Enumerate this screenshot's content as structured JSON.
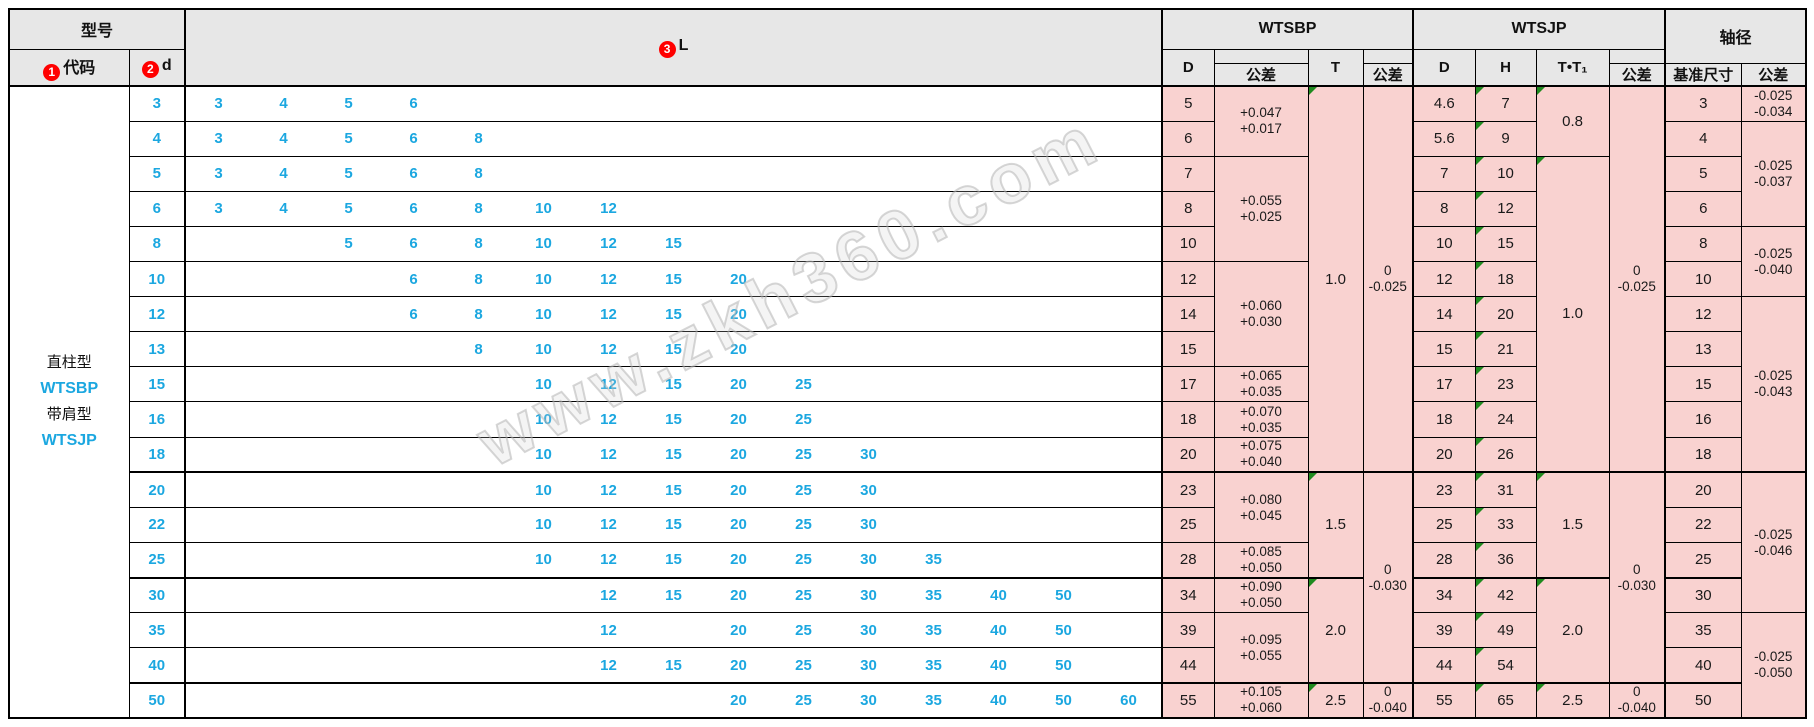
{
  "watermark": "www.zkh360.com",
  "colors": {
    "accent_blue": "#1BA7E0",
    "pink_bg": "#F9D2D0",
    "header_gray": "#E7E7E7",
    "badge_red": "#FF0000",
    "marker_green": "#1F8A1F"
  },
  "header": {
    "model": "型号",
    "code": {
      "badge": "1",
      "label": "代码"
    },
    "d": {
      "badge": "2",
      "label": "d"
    },
    "l": {
      "badge": "3",
      "label": "L"
    },
    "wtsbp": "WTSBP",
    "wtsjp": "WTSJP",
    "shaft": "轴径",
    "sub_d": "D",
    "sub_tol": "公差",
    "sub_t": "T",
    "sub_h": "H",
    "sub_tt1": "T•T₁",
    "sub_datum": "基准尺寸"
  },
  "model_cell": {
    "type1": "直柱型",
    "code1": "WTSBP",
    "type2": "带肩型",
    "code2": "WTSJP"
  },
  "l_slots": [
    "3",
    "4",
    "5",
    "6",
    "8",
    "10",
    "12",
    "15",
    "20",
    "25",
    "30",
    "35",
    "40",
    "50",
    "60"
  ],
  "rows": [
    {
      "d": "3",
      "l": [
        "3",
        "4",
        "5",
        "6"
      ],
      "bp_d": "5",
      "jp_d": "4.6",
      "jp_h": "7",
      "shaft": "3"
    },
    {
      "d": "4",
      "l": [
        "3",
        "4",
        "5",
        "6",
        "8"
      ],
      "bp_d": "6",
      "jp_d": "5.6",
      "jp_h": "9",
      "shaft": "4"
    },
    {
      "d": "5",
      "l": [
        "3",
        "4",
        "5",
        "6",
        "8"
      ],
      "bp_d": "7",
      "jp_d": "7",
      "jp_h": "10",
      "shaft": "5"
    },
    {
      "d": "6",
      "l": [
        "3",
        "4",
        "5",
        "6",
        "8",
        "10",
        "12"
      ],
      "bp_d": "8",
      "jp_d": "8",
      "jp_h": "12",
      "shaft": "6"
    },
    {
      "d": "8",
      "l": [
        "5",
        "6",
        "8",
        "10",
        "12",
        "15"
      ],
      "bp_d": "10",
      "jp_d": "10",
      "jp_h": "15",
      "shaft": "8"
    },
    {
      "d": "10",
      "l": [
        "6",
        "8",
        "10",
        "12",
        "15",
        "20"
      ],
      "bp_d": "12",
      "jp_d": "12",
      "jp_h": "18",
      "shaft": "10"
    },
    {
      "d": "12",
      "l": [
        "6",
        "8",
        "10",
        "12",
        "15",
        "20"
      ],
      "bp_d": "14",
      "jp_d": "14",
      "jp_h": "20",
      "shaft": "12"
    },
    {
      "d": "13",
      "l": [
        "8",
        "10",
        "12",
        "15",
        "20"
      ],
      "bp_d": "15",
      "jp_d": "15",
      "jp_h": "21",
      "shaft": "13"
    },
    {
      "d": "15",
      "l": [
        "10",
        "12",
        "15",
        "20",
        "25"
      ],
      "bp_d": "17",
      "jp_d": "17",
      "jp_h": "23",
      "shaft": "15"
    },
    {
      "d": "16",
      "l": [
        "10",
        "12",
        "15",
        "20",
        "25"
      ],
      "bp_d": "18",
      "jp_d": "18",
      "jp_h": "24",
      "shaft": "16"
    },
    {
      "d": "18",
      "l": [
        "10",
        "12",
        "15",
        "20",
        "25",
        "30"
      ],
      "bp_d": "20",
      "jp_d": "20",
      "jp_h": "26",
      "shaft": "18"
    },
    {
      "d": "20",
      "l": [
        "10",
        "12",
        "15",
        "20",
        "25",
        "30"
      ],
      "bp_d": "23",
      "jp_d": "23",
      "jp_h": "31",
      "shaft": "20"
    },
    {
      "d": "22",
      "l": [
        "10",
        "12",
        "15",
        "20",
        "25",
        "30"
      ],
      "bp_d": "25",
      "jp_d": "25",
      "jp_h": "33",
      "shaft": "22"
    },
    {
      "d": "25",
      "l": [
        "10",
        "12",
        "15",
        "20",
        "25",
        "30",
        "35"
      ],
      "bp_d": "28",
      "jp_d": "28",
      "jp_h": "36",
      "shaft": "25"
    },
    {
      "d": "30",
      "l": [
        "12",
        "15",
        "20",
        "25",
        "30",
        "35",
        "40",
        "50"
      ],
      "bp_d": "34",
      "jp_d": "34",
      "jp_h": "42",
      "shaft": "30"
    },
    {
      "d": "35",
      "l": [
        "12",
        "20",
        "25",
        "30",
        "35",
        "40",
        "50"
      ],
      "bp_d": "39",
      "jp_d": "39",
      "jp_h": "49",
      "shaft": "35"
    },
    {
      "d": "40",
      "l": [
        "12",
        "15",
        "20",
        "25",
        "30",
        "35",
        "40",
        "50"
      ],
      "bp_d": "44",
      "jp_d": "44",
      "jp_h": "54",
      "shaft": "40"
    },
    {
      "d": "50",
      "l": [
        "20",
        "25",
        "30",
        "35",
        "40",
        "50",
        "60"
      ],
      "bp_d": "55",
      "jp_d": "55",
      "jp_h": "65",
      "shaft": "50"
    }
  ],
  "bp_tol_groups": [
    {
      "start": 0,
      "span": 2,
      "lines": [
        "+0.047",
        "+0.017"
      ]
    },
    {
      "start": 2,
      "span": 3,
      "lines": [
        "+0.055",
        "+0.025"
      ]
    },
    {
      "start": 5,
      "span": 3,
      "lines": [
        "+0.060",
        "+0.030"
      ]
    },
    {
      "start": 8,
      "span": 1,
      "lines": [
        "+0.065",
        "+0.035"
      ]
    },
    {
      "start": 9,
      "span": 1,
      "lines": [
        "+0.070",
        "+0.035"
      ]
    },
    {
      "start": 10,
      "span": 1,
      "lines": [
        "+0.075",
        "+0.040"
      ]
    },
    {
      "start": 11,
      "span": 2,
      "lines": [
        "+0.080",
        "+0.045"
      ]
    },
    {
      "start": 13,
      "span": 1,
      "lines": [
        "+0.085",
        "+0.050"
      ]
    },
    {
      "start": 14,
      "span": 1,
      "lines": [
        "+0.090",
        "+0.050"
      ]
    },
    {
      "start": 15,
      "span": 2,
      "lines": [
        "+0.095",
        "+0.055"
      ]
    },
    {
      "start": 17,
      "span": 1,
      "lines": [
        "+0.105",
        "+0.060"
      ]
    }
  ],
  "t_groups": [
    {
      "start": 0,
      "span": 11,
      "value": "1.0"
    },
    {
      "start": 11,
      "span": 3,
      "value": "1.5"
    },
    {
      "start": 14,
      "span": 3,
      "value": "2.0"
    },
    {
      "start": 17,
      "span": 1,
      "value": "2.5"
    }
  ],
  "t_tol_groups": [
    {
      "start": 0,
      "span": 11,
      "lines": [
        "0",
        "-0.025"
      ]
    },
    {
      "start": 11,
      "span": 6,
      "lines": [
        "0",
        "-0.030"
      ]
    },
    {
      "start": 17,
      "span": 1,
      "lines": [
        "0",
        "-0.040"
      ]
    }
  ],
  "tt1_groups": [
    {
      "start": 0,
      "span": 2,
      "value": "0.8"
    },
    {
      "start": 2,
      "span": 9,
      "value": "1.0"
    },
    {
      "start": 11,
      "span": 3,
      "value": "1.5"
    },
    {
      "start": 14,
      "span": 3,
      "value": "2.0"
    },
    {
      "start": 17,
      "span": 1,
      "value": "2.5"
    }
  ],
  "jp_tol_groups": [
    {
      "start": 0,
      "span": 11,
      "lines": [
        "0",
        "-0.025"
      ]
    },
    {
      "start": 11,
      "span": 6,
      "lines": [
        "0",
        "-0.030"
      ]
    },
    {
      "start": 17,
      "span": 1,
      "lines": [
        "0",
        "-0.040"
      ]
    }
  ],
  "shaft_tol_groups": [
    {
      "start": 0,
      "span": 1,
      "lines": [
        "-0.025",
        "-0.034"
      ]
    },
    {
      "start": 1,
      "span": 3,
      "lines": [
        "-0.025",
        "-0.037"
      ]
    },
    {
      "start": 4,
      "span": 2,
      "lines": [
        "-0.025",
        "-0.040"
      ]
    },
    {
      "start": 6,
      "span": 5,
      "lines": [
        "-0.025",
        "-0.043"
      ]
    },
    {
      "start": 11,
      "span": 4,
      "lines": [
        "-0.025",
        "-0.046"
      ]
    },
    {
      "start": 15,
      "span": 3,
      "lines": [
        "-0.025",
        "-0.050"
      ]
    }
  ],
  "group_separator_rows": [
    11,
    14,
    17
  ]
}
